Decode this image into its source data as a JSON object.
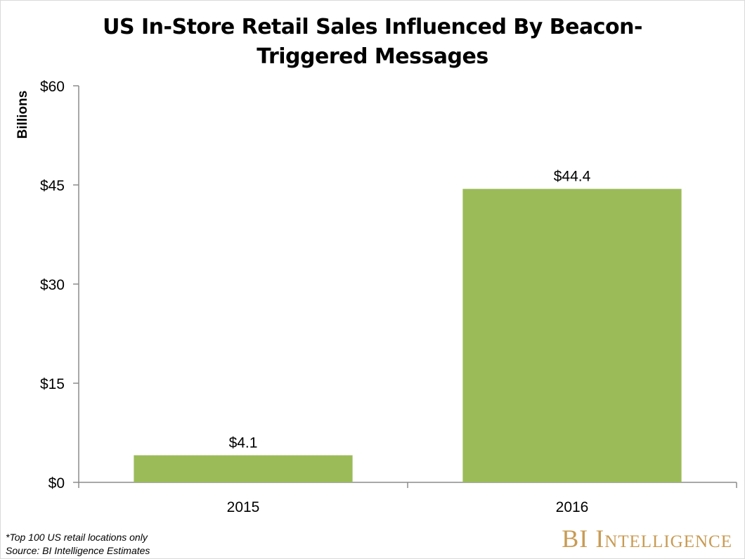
{
  "chart_data": {
    "type": "bar",
    "title_lines": [
      "US In-Store Retail Sales Influenced By Beacon-",
      "Triggered Messages"
    ],
    "title": "US In-Store Retail Sales Influenced By Beacon-Triggered Messages",
    "ylabel": "Billions",
    "xlabel": "",
    "categories": [
      "2015",
      "2016"
    ],
    "values": [
      4.1,
      44.4
    ],
    "value_labels": [
      "$4.1",
      "$44.4"
    ],
    "ylim": [
      0,
      60
    ],
    "yticks": [
      0,
      15,
      30,
      45,
      60
    ],
    "ytick_labels": [
      "$0",
      "$15",
      "$30",
      "$45",
      "$60"
    ],
    "bar_color": "#9bbb59",
    "grid": false,
    "legend": "none"
  },
  "footnotes": {
    "note": "*Top 100 US retail locations only",
    "source": "Source: BI Intelligence Estimates"
  },
  "brand": {
    "text": "BI Intelligence",
    "color": "#c89b53"
  }
}
